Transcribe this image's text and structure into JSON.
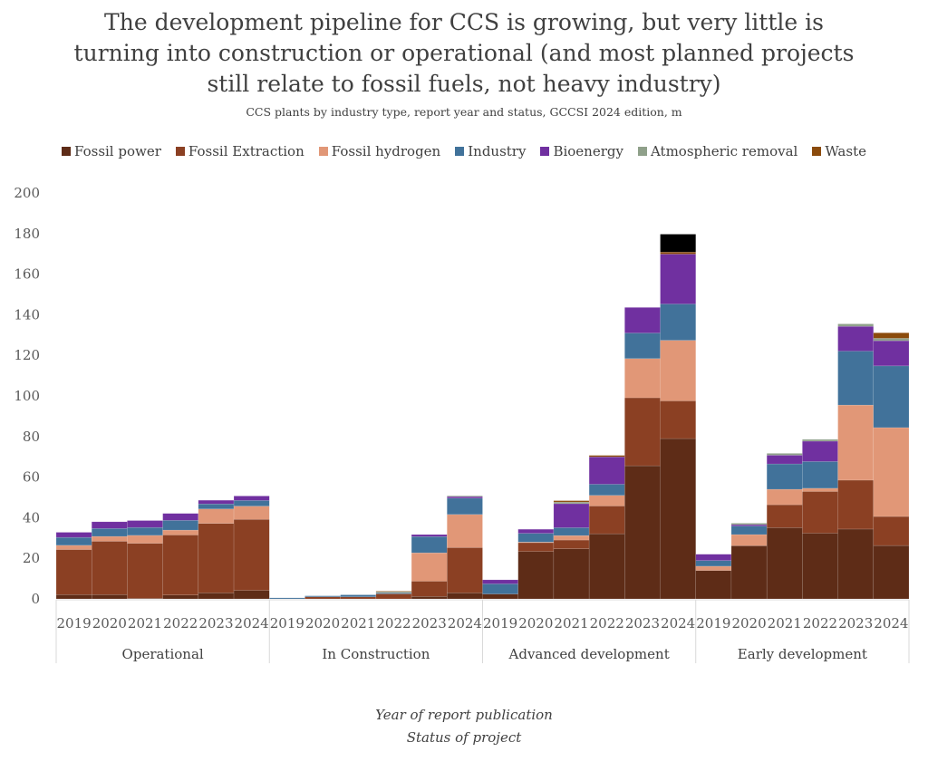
{
  "chart_data": {
    "type": "bar",
    "stacked": true,
    "title_lines": [
      "The development pipeline for CCS is growing, but very little is",
      "turning into construction or operational (and most planned projects",
      "still relate to fossil fuels, not heavy industry)"
    ],
    "subtitle": "CCS plants by industry type, report year and status, GCCSI 2024 edition, m",
    "xlabel_lines": [
      "Year of report publication",
      "Status of project"
    ],
    "ylabel": "",
    "ylim": [
      0,
      200
    ],
    "yticks": [
      0,
      20,
      40,
      60,
      80,
      100,
      120,
      140,
      160,
      180,
      200
    ],
    "grid": false,
    "legend_position": "top",
    "groups": [
      "Operational",
      "In Construction",
      "Advanced development",
      "Early development"
    ],
    "years": [
      "2019",
      "2020",
      "2021",
      "2022",
      "2023",
      "2024"
    ],
    "series": [
      {
        "name": "Fossil power",
        "color": "#5e2c17",
        "in_legend": true,
        "values": [
          2.1,
          2.1,
          0.3,
          1.9,
          3.0,
          4.2,
          0,
          0,
          0,
          0,
          1.2,
          3.0,
          2.4,
          23.4,
          24.7,
          32.1,
          65.6,
          79.0,
          14.0,
          26.2,
          35.1,
          32.4,
          34.4,
          26.3
        ]
      },
      {
        "name": "Fossil Extraction",
        "color": "#8b4023",
        "in_legend": true,
        "values": [
          22.2,
          26.3,
          27.1,
          29.6,
          34.2,
          35.0,
          0,
          1.0,
          1.0,
          2.5,
          7.5,
          22.3,
          0,
          4.3,
          4.3,
          13.7,
          33.5,
          18.6,
          0,
          0,
          11.3,
          20.5,
          24.1,
          14.3
        ]
      },
      {
        "name": "Fossil hydrogen",
        "color": "#e19777",
        "in_legend": true,
        "values": [
          2.1,
          2.4,
          3.9,
          2.4,
          7.1,
          6.5,
          0,
          0,
          0,
          0,
          14.0,
          16.3,
          0,
          0.3,
          2.2,
          5.2,
          19.3,
          29.8,
          2.1,
          5.5,
          7.6,
          1.6,
          37.0,
          43.8
        ]
      },
      {
        "name": "Industry",
        "color": "#41729a",
        "in_legend": true,
        "values": [
          3.9,
          3.9,
          3.9,
          4.8,
          2.5,
          2.8,
          0.5,
          0.5,
          1.0,
          0.5,
          8.0,
          8.0,
          5.0,
          4.3,
          3.9,
          5.5,
          12.6,
          17.9,
          2.8,
          4.2,
          12.5,
          13.2,
          26.6,
          30.4
        ]
      },
      {
        "name": "Bioenergy",
        "color": "#7030a0",
        "in_legend": true,
        "values": [
          2.5,
          3.3,
          3.4,
          3.4,
          1.8,
          2.2,
          0,
          0,
          0,
          0,
          1.0,
          0.8,
          2.0,
          2.0,
          11.8,
          13.5,
          12.6,
          24.6,
          3.1,
          0.7,
          4.3,
          10.0,
          12.2,
          12.4
        ]
      },
      {
        "name": "Atmospheric removal",
        "color": "#8fa08a",
        "in_legend": true,
        "values": [
          0,
          0,
          0,
          0,
          0,
          0,
          0,
          0,
          0,
          0.5,
          0,
          0.4,
          0,
          0,
          0.8,
          0,
          0,
          0,
          0,
          0.7,
          0.9,
          0.9,
          1.2,
          1.2
        ]
      },
      {
        "name": "Waste",
        "color": "#8b4b0c",
        "in_legend": true,
        "values": [
          0,
          0,
          0,
          0,
          0,
          0,
          0,
          0,
          0,
          0.3,
          0,
          0,
          0,
          0,
          0.7,
          0.7,
          0,
          1.0,
          0,
          0,
          0,
          0,
          0,
          2.7
        ]
      },
      {
        "name": "",
        "color": "#000000",
        "in_legend": false,
        "values": [
          0,
          0,
          0,
          0,
          0,
          0,
          0,
          0,
          0,
          0,
          0,
          0,
          0,
          0,
          0,
          0,
          0,
          8.8,
          0,
          0,
          0,
          0,
          0,
          0
        ]
      }
    ]
  }
}
